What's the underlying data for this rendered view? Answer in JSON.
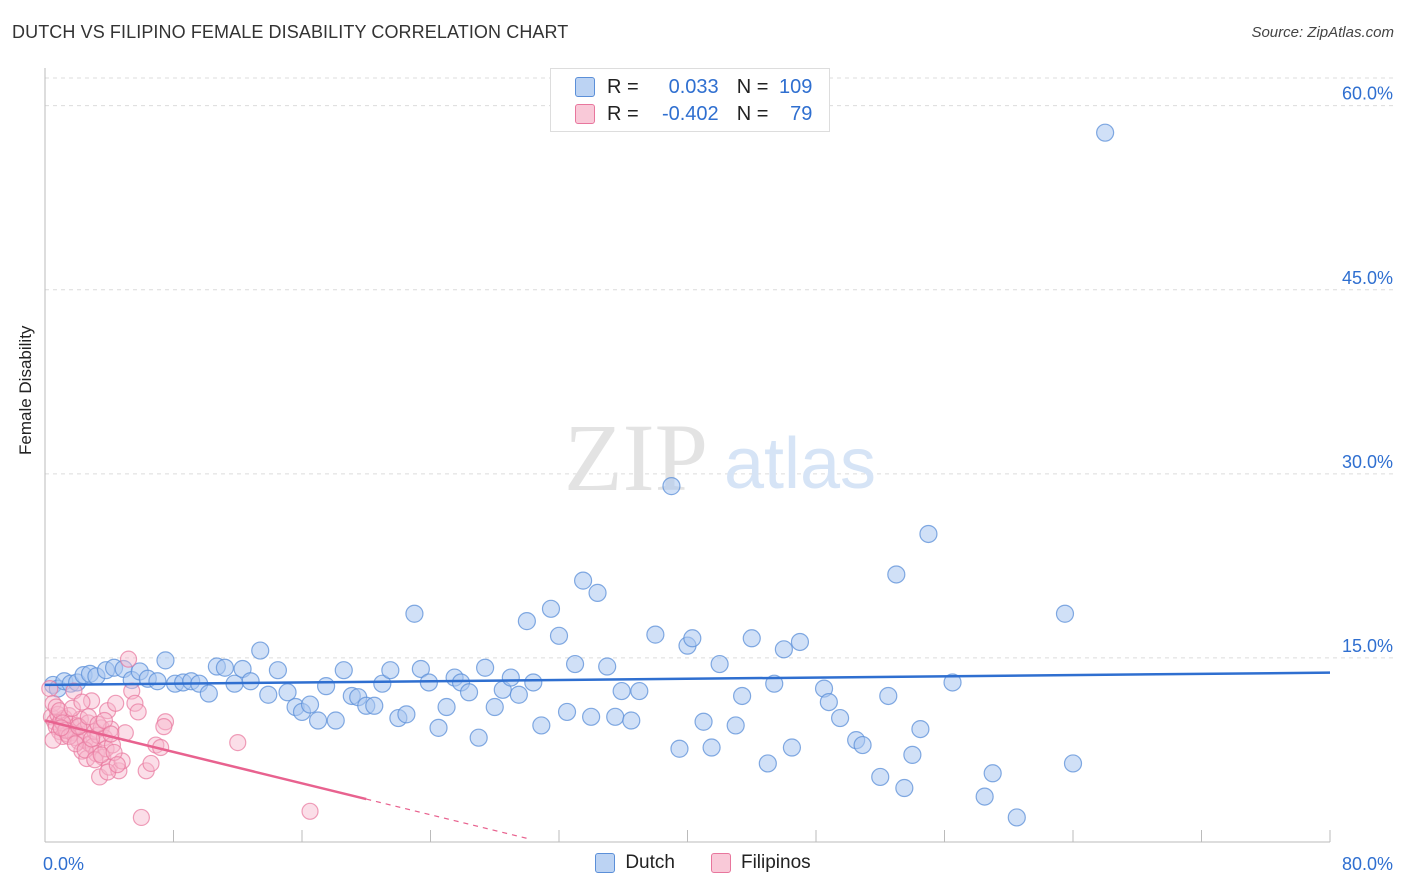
{
  "title": "DUTCH VS FILIPINO FEMALE DISABILITY CORRELATION CHART",
  "source": "Source: ZipAtlas.com",
  "watermark": {
    "zip": "ZIP",
    "atlas": "atlas"
  },
  "colors": {
    "dutch_fill": "#a9c7f0",
    "dutch_stroke": "#5b8fd8",
    "dutch_line": "#2f6fd0",
    "filipino_fill": "#f7b6cb",
    "filipino_stroke": "#e8769d",
    "filipino_line": "#e8628f",
    "value_text": "#2f6fd0"
  },
  "legend": {
    "rows": [
      {
        "r_label": "R =",
        "r_value": "0.033",
        "n_label": "N =",
        "n_value": "109"
      },
      {
        "r_label": "R =",
        "r_value": "-0.402",
        "n_label": "N =",
        "n_value": "79"
      }
    ],
    "bottom": [
      "Dutch",
      "Filipinos"
    ]
  },
  "chart_data": {
    "type": "scatter",
    "ylabel": "Female Disability",
    "xlim": [
      0,
      80
    ],
    "ylim": [
      0,
      62.5
    ],
    "x_tick_labels": [
      "0.0%",
      "80.0%"
    ],
    "y_ticks": [
      15,
      30,
      45,
      60
    ],
    "y_tick_labels": [
      "15.0%",
      "30.0%",
      "45.0%",
      "60.0%"
    ],
    "grid": true,
    "legend_position": "top-center",
    "series": [
      {
        "name": "Dutch",
        "trend": {
          "x": [
            0,
            80
          ],
          "y": [
            12.8,
            13.8
          ]
        },
        "points": [
          [
            0.5,
            12.8
          ],
          [
            0.8,
            12.5
          ],
          [
            1.2,
            13.1
          ],
          [
            1.6,
            12.9
          ],
          [
            2.0,
            13.0
          ],
          [
            2.4,
            13.6
          ],
          [
            2.8,
            13.7
          ],
          [
            3.2,
            13.5
          ],
          [
            3.8,
            14.0
          ],
          [
            4.3,
            14.2
          ],
          [
            4.9,
            14.1
          ],
          [
            5.4,
            13.2
          ],
          [
            5.9,
            13.9
          ],
          [
            6.4,
            13.3
          ],
          [
            7.0,
            13.1
          ],
          [
            7.5,
            14.8
          ],
          [
            8.1,
            12.9
          ],
          [
            8.6,
            13.0
          ],
          [
            9.1,
            13.1
          ],
          [
            9.6,
            12.9
          ],
          [
            10.2,
            12.1
          ],
          [
            10.7,
            14.3
          ],
          [
            11.2,
            14.2
          ],
          [
            11.8,
            12.9
          ],
          [
            12.3,
            14.1
          ],
          [
            12.8,
            13.1
          ],
          [
            13.4,
            15.6
          ],
          [
            13.9,
            12.0
          ],
          [
            14.5,
            14.0
          ],
          [
            15.1,
            12.2
          ],
          [
            15.6,
            11.0
          ],
          [
            16.0,
            10.6
          ],
          [
            16.5,
            11.2
          ],
          [
            17.0,
            9.9
          ],
          [
            17.5,
            12.7
          ],
          [
            18.1,
            9.9
          ],
          [
            18.6,
            14.0
          ],
          [
            19.1,
            11.9
          ],
          [
            19.5,
            11.8
          ],
          [
            20.0,
            11.1
          ],
          [
            20.5,
            11.1
          ],
          [
            21.0,
            12.9
          ],
          [
            21.5,
            14.0
          ],
          [
            22.0,
            10.1
          ],
          [
            22.5,
            10.4
          ],
          [
            23.0,
            18.6
          ],
          [
            23.4,
            14.1
          ],
          [
            23.9,
            13.0
          ],
          [
            24.5,
            9.3
          ],
          [
            25.0,
            11.0
          ],
          [
            25.5,
            13.4
          ],
          [
            25.9,
            13.0
          ],
          [
            26.4,
            12.2
          ],
          [
            27.0,
            8.5
          ],
          [
            27.4,
            14.2
          ],
          [
            28.0,
            11.0
          ],
          [
            28.5,
            12.4
          ],
          [
            29.0,
            13.4
          ],
          [
            29.5,
            12.0
          ],
          [
            30.0,
            18.0
          ],
          [
            30.4,
            13.0
          ],
          [
            30.9,
            9.5
          ],
          [
            31.5,
            19.0
          ],
          [
            32.0,
            16.8
          ],
          [
            32.5,
            10.6
          ],
          [
            33.0,
            14.5
          ],
          [
            33.5,
            21.3
          ],
          [
            34.0,
            10.2
          ],
          [
            34.4,
            20.3
          ],
          [
            35.0,
            14.3
          ],
          [
            35.5,
            10.2
          ],
          [
            35.9,
            12.3
          ],
          [
            36.5,
            9.9
          ],
          [
            37.0,
            12.3
          ],
          [
            38.0,
            16.9
          ],
          [
            39.0,
            29.0
          ],
          [
            39.5,
            7.6
          ],
          [
            40.0,
            16.0
          ],
          [
            40.3,
            16.6
          ],
          [
            41.0,
            9.8
          ],
          [
            41.5,
            7.7
          ],
          [
            42.0,
            14.5
          ],
          [
            43.0,
            9.5
          ],
          [
            43.4,
            11.9
          ],
          [
            44.0,
            16.6
          ],
          [
            45.0,
            6.4
          ],
          [
            45.4,
            12.9
          ],
          [
            46.0,
            15.7
          ],
          [
            46.5,
            7.7
          ],
          [
            47.0,
            16.3
          ],
          [
            48.5,
            12.5
          ],
          [
            48.8,
            11.4
          ],
          [
            49.5,
            10.1
          ],
          [
            50.5,
            8.3
          ],
          [
            50.9,
            7.9
          ],
          [
            52.0,
            5.3
          ],
          [
            52.5,
            11.9
          ],
          [
            53.0,
            21.8
          ],
          [
            53.5,
            4.4
          ],
          [
            54.0,
            7.1
          ],
          [
            54.5,
            9.2
          ],
          [
            55.0,
            25.1
          ],
          [
            56.5,
            13.0
          ],
          [
            58.5,
            3.7
          ],
          [
            59.0,
            5.6
          ],
          [
            60.5,
            2.0
          ],
          [
            63.5,
            18.6
          ],
          [
            64.0,
            6.4
          ],
          [
            66.0,
            57.8
          ]
        ]
      },
      {
        "name": "Filipinos",
        "trend": {
          "x": [
            0,
            20
          ],
          "y": [
            9.9,
            3.5
          ]
        },
        "trend_dashed": {
          "x": [
            20,
            30
          ],
          "y": [
            3.5,
            0.3
          ]
        },
        "points": [
          [
            0.3,
            12.5
          ],
          [
            0.4,
            10.2
          ],
          [
            0.5,
            11.3
          ],
          [
            0.6,
            9.8
          ],
          [
            0.7,
            9.4
          ],
          [
            0.8,
            10.4
          ],
          [
            0.9,
            9.0
          ],
          [
            1.0,
            9.9
          ],
          [
            1.1,
            8.6
          ],
          [
            1.2,
            10.1
          ],
          [
            1.3,
            9.2
          ],
          [
            1.4,
            8.8
          ],
          [
            1.5,
            10.3
          ],
          [
            1.6,
            9.6
          ],
          [
            1.7,
            8.9
          ],
          [
            1.8,
            12.3
          ],
          [
            1.9,
            8.5
          ],
          [
            2.0,
            9.5
          ],
          [
            2.1,
            8.2
          ],
          [
            2.2,
            10.0
          ],
          [
            2.3,
            7.4
          ],
          [
            2.4,
            9.1
          ],
          [
            2.5,
            8.3
          ],
          [
            2.6,
            6.8
          ],
          [
            2.7,
            9.7
          ],
          [
            2.8,
            8.0
          ],
          [
            2.9,
            11.5
          ],
          [
            3.0,
            7.8
          ],
          [
            3.1,
            9.0
          ],
          [
            3.2,
            7.2
          ],
          [
            3.3,
            8.7
          ],
          [
            3.4,
            5.3
          ],
          [
            3.5,
            9.3
          ],
          [
            3.6,
            6.9
          ],
          [
            3.7,
            8.5
          ],
          [
            3.8,
            7.6
          ],
          [
            3.9,
            10.7
          ],
          [
            4.0,
            6.1
          ],
          [
            4.1,
            9.2
          ],
          [
            4.2,
            7.9
          ],
          [
            4.4,
            11.3
          ],
          [
            4.6,
            5.8
          ],
          [
            4.8,
            6.6
          ],
          [
            5.0,
            8.9
          ],
          [
            5.2,
            14.9
          ],
          [
            5.4,
            12.3
          ],
          [
            5.6,
            11.3
          ],
          [
            5.8,
            10.6
          ],
          [
            6.0,
            2.0
          ],
          [
            6.3,
            5.8
          ],
          [
            6.6,
            6.4
          ],
          [
            6.9,
            7.9
          ],
          [
            7.2,
            7.7
          ],
          [
            7.5,
            9.8
          ],
          [
            0.5,
            8.3
          ],
          [
            0.7,
            11.0
          ],
          [
            0.9,
            10.7
          ],
          [
            1.1,
            9.7
          ],
          [
            1.3,
            9.1
          ],
          [
            1.5,
            8.6
          ],
          [
            1.7,
            10.9
          ],
          [
            1.9,
            8.0
          ],
          [
            2.1,
            9.4
          ],
          [
            2.3,
            11.4
          ],
          [
            2.5,
            7.5
          ],
          [
            2.7,
            10.2
          ],
          [
            2.9,
            8.4
          ],
          [
            3.1,
            6.7
          ],
          [
            3.3,
            9.6
          ],
          [
            3.5,
            7.1
          ],
          [
            3.7,
            9.9
          ],
          [
            3.9,
            5.7
          ],
          [
            4.1,
            8.8
          ],
          [
            4.3,
            7.3
          ],
          [
            4.5,
            6.3
          ],
          [
            7.4,
            9.4
          ],
          [
            12.0,
            8.1
          ],
          [
            16.5,
            2.5
          ],
          [
            1.0,
            9.3
          ]
        ]
      }
    ]
  }
}
